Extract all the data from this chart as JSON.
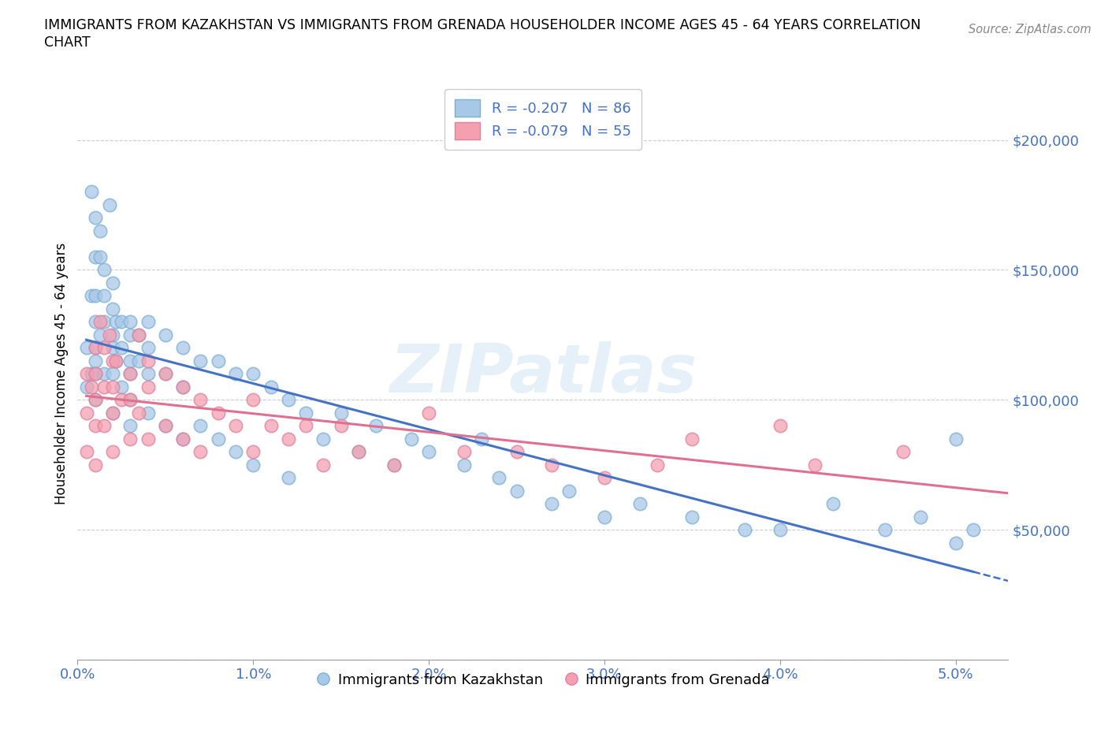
{
  "title_line1": "IMMIGRANTS FROM KAZAKHSTAN VS IMMIGRANTS FROM GRENADA HOUSEHOLDER INCOME AGES 45 - 64 YEARS CORRELATION",
  "title_line2": "CHART",
  "source_text": "Source: ZipAtlas.com",
  "ylabel": "Householder Income Ages 45 - 64 years",
  "xlim": [
    0.0,
    0.053
  ],
  "ylim": [
    0,
    220000
  ],
  "yticks": [
    0,
    50000,
    100000,
    150000,
    200000
  ],
  "ytick_labels": [
    "",
    "$50,000",
    "$100,000",
    "$150,000",
    "$200,000"
  ],
  "xticks": [
    0.0,
    0.01,
    0.02,
    0.03,
    0.04,
    0.05
  ],
  "xtick_labels": [
    "0.0%",
    "1.0%",
    "2.0%",
    "3.0%",
    "4.0%",
    "5.0%"
  ],
  "kazakhstan_color": "#a8c8e8",
  "grenada_color": "#f4a0b0",
  "kz_line_color": "#4472c4",
  "gr_line_color": "#e07090",
  "kazakhstan_R": -0.207,
  "kazakhstan_N": 86,
  "grenada_R": -0.079,
  "grenada_N": 55,
  "legend_label_kz": "Immigrants from Kazakhstan",
  "legend_label_gr": "Immigrants from Grenada",
  "kazakhstan_x": [
    0.0005,
    0.0005,
    0.0008,
    0.0008,
    0.0008,
    0.001,
    0.001,
    0.001,
    0.001,
    0.001,
    0.001,
    0.001,
    0.001,
    0.0013,
    0.0013,
    0.0013,
    0.0015,
    0.0015,
    0.0015,
    0.0015,
    0.0018,
    0.002,
    0.002,
    0.002,
    0.002,
    0.002,
    0.002,
    0.0022,
    0.0022,
    0.0025,
    0.0025,
    0.0025,
    0.003,
    0.003,
    0.003,
    0.003,
    0.003,
    0.003,
    0.0035,
    0.0035,
    0.004,
    0.004,
    0.004,
    0.004,
    0.005,
    0.005,
    0.005,
    0.006,
    0.006,
    0.006,
    0.007,
    0.007,
    0.008,
    0.008,
    0.009,
    0.009,
    0.01,
    0.01,
    0.011,
    0.012,
    0.012,
    0.013,
    0.014,
    0.015,
    0.016,
    0.017,
    0.018,
    0.019,
    0.02,
    0.022,
    0.023,
    0.024,
    0.025,
    0.027,
    0.028,
    0.03,
    0.032,
    0.035,
    0.038,
    0.04,
    0.043,
    0.046,
    0.048,
    0.05,
    0.05,
    0.051
  ],
  "kazakhstan_y": [
    120000,
    105000,
    180000,
    140000,
    110000,
    170000,
    155000,
    140000,
    130000,
    120000,
    115000,
    110000,
    100000,
    165000,
    155000,
    125000,
    150000,
    140000,
    130000,
    110000,
    175000,
    145000,
    135000,
    125000,
    120000,
    110000,
    95000,
    130000,
    115000,
    130000,
    120000,
    105000,
    130000,
    125000,
    115000,
    110000,
    100000,
    90000,
    125000,
    115000,
    130000,
    120000,
    110000,
    95000,
    125000,
    110000,
    90000,
    120000,
    105000,
    85000,
    115000,
    90000,
    115000,
    85000,
    110000,
    80000,
    110000,
    75000,
    105000,
    100000,
    70000,
    95000,
    85000,
    95000,
    80000,
    90000,
    75000,
    85000,
    80000,
    75000,
    85000,
    70000,
    65000,
    60000,
    65000,
    55000,
    60000,
    55000,
    50000,
    50000,
    60000,
    50000,
    55000,
    85000,
    45000,
    50000
  ],
  "grenada_x": [
    0.0005,
    0.0005,
    0.0005,
    0.0008,
    0.001,
    0.001,
    0.001,
    0.001,
    0.001,
    0.0013,
    0.0015,
    0.0015,
    0.0015,
    0.0018,
    0.002,
    0.002,
    0.002,
    0.002,
    0.0022,
    0.0025,
    0.003,
    0.003,
    0.003,
    0.0035,
    0.0035,
    0.004,
    0.004,
    0.004,
    0.005,
    0.005,
    0.006,
    0.006,
    0.007,
    0.007,
    0.008,
    0.009,
    0.01,
    0.01,
    0.011,
    0.012,
    0.013,
    0.014,
    0.015,
    0.016,
    0.018,
    0.02,
    0.022,
    0.025,
    0.027,
    0.03,
    0.033,
    0.035,
    0.04,
    0.042,
    0.047
  ],
  "grenada_y": [
    110000,
    95000,
    80000,
    105000,
    120000,
    110000,
    100000,
    90000,
    75000,
    130000,
    120000,
    105000,
    90000,
    125000,
    115000,
    105000,
    95000,
    80000,
    115000,
    100000,
    110000,
    100000,
    85000,
    125000,
    95000,
    115000,
    105000,
    85000,
    110000,
    90000,
    105000,
    85000,
    100000,
    80000,
    95000,
    90000,
    100000,
    80000,
    90000,
    85000,
    90000,
    75000,
    90000,
    80000,
    75000,
    95000,
    80000,
    80000,
    75000,
    70000,
    75000,
    85000,
    90000,
    75000,
    80000
  ]
}
